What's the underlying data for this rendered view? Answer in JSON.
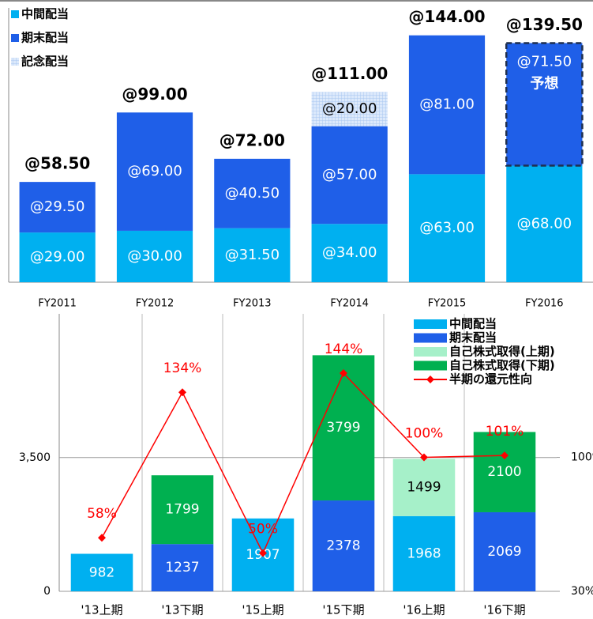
{
  "chart_data": [
    {
      "type": "bar",
      "categories": [
        "FY2011",
        "FY2012",
        "FY2013",
        "FY2014",
        "FY2015",
        "FY2016"
      ],
      "ylim": [
        0,
        160
      ],
      "series": [
        {
          "name": "中間配当",
          "color": "#00b0f0",
          "values": [
            29.0,
            30.0,
            31.5,
            34.0,
            63.0,
            68.0
          ],
          "value_labels": [
            "@29.00",
            "@30.00",
            "@31.50",
            "@34.00",
            "@63.00",
            "@68.00"
          ]
        },
        {
          "name": "期末配当",
          "color": "#1f5fe8",
          "values": [
            29.5,
            69.0,
            40.5,
            57.0,
            81.0,
            71.5
          ],
          "value_labels": [
            "@29.50",
            "@69.00",
            "@40.50",
            "@57.00",
            "@81.00",
            "@71.50"
          ]
        },
        {
          "name": "記念配当",
          "color": "#c7dcf6",
          "values": [
            null,
            null,
            null,
            20.0,
            null,
            null
          ],
          "value_labels": [
            null,
            null,
            null,
            "@20.00",
            null,
            null
          ]
        }
      ],
      "totals": [
        58.5,
        99.0,
        72.0,
        111.0,
        144.0,
        139.5
      ],
      "total_labels": [
        "@58.50",
        "@99.00",
        "@72.00",
        "@111.00",
        "@144.00",
        "@139.50"
      ],
      "annotations": [
        {
          "text": "予想",
          "category_index": 5
        }
      ],
      "legend": "top-left"
    },
    {
      "type": "bar",
      "categories": [
        "'13上期",
        "'13下期",
        "'15上期",
        "'15下期",
        "'16上期",
        "'16下期"
      ],
      "ylim": [
        0,
        7260
      ],
      "yticks": [
        0,
        {
          "value": 3500,
          "label": "3,500"
        }
      ],
      "y2lim": [
        30,
        175
      ],
      "y2ticks": [
        {
          "value": 30,
          "label": "30%"
        },
        {
          "value": 100,
          "label": "100%"
        }
      ],
      "series": [
        {
          "name": "中間配当",
          "color": "#00b0f0",
          "values": [
            982,
            null,
            1907,
            null,
            1968,
            null
          ]
        },
        {
          "name": "期末配当",
          "color": "#1f5fe8",
          "values": [
            null,
            1237,
            null,
            2378,
            null,
            2069
          ]
        },
        {
          "name": "自己株式取得(上期)",
          "color": "#a6f0c9",
          "values": [
            null,
            null,
            null,
            null,
            1499,
            null
          ]
        },
        {
          "name": "自己株式取得(下期)",
          "color": "#00b050",
          "values": [
            null,
            1799,
            null,
            3799,
            null,
            2100
          ]
        },
        {
          "name": "半期の還元性向",
          "type": "line",
          "axis": "y2",
          "color": "#ff0000",
          "values": [
            58,
            134,
            50,
            144,
            100,
            101
          ],
          "value_labels": [
            "58%",
            "134%",
            "50%",
            "144%",
            "100%",
            "101%"
          ]
        }
      ],
      "legend": "top-right"
    }
  ]
}
